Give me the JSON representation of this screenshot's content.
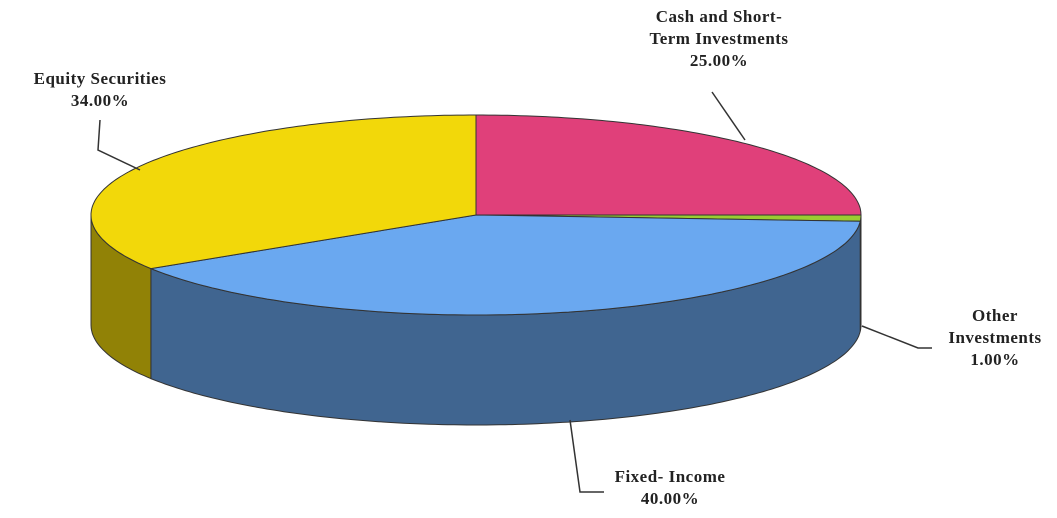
{
  "chart_data": {
    "type": "pie",
    "categories": [
      "Cash and Short-Term Investments",
      "Other Investments",
      "Fixed- Income",
      "Equity Securities"
    ],
    "values": [
      25,
      1,
      40,
      34
    ],
    "value_labels": [
      "25.00%",
      "1.00%",
      "40.00%",
      "34.00%"
    ],
    "colors": [
      "#e0407a",
      "#9acd32",
      "#6aa8f0",
      "#f2d80a"
    ]
  }
}
